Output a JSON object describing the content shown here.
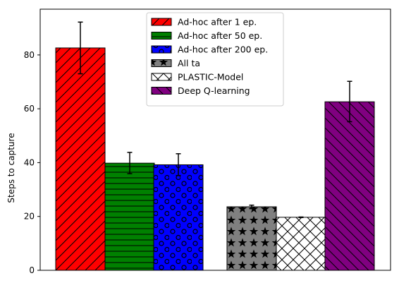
{
  "chart_data": {
    "type": "bar",
    "ylabel": "Steps to capture",
    "xlabel": "",
    "ylim": [
      0,
      97
    ],
    "yticks": [
      0,
      20,
      40,
      60,
      80
    ],
    "legend_placement": "top-center",
    "series": [
      {
        "name": "Ad-hoc after 1 ep.",
        "value": 82.6,
        "err": [
          73.0,
          92.2
        ],
        "color": "#ff0000",
        "hatch": "diag-up"
      },
      {
        "name": "Ad-hoc after 50 ep.",
        "value": 39.8,
        "err": [
          35.9,
          43.8
        ],
        "color": "#008000",
        "hatch": "horizontal"
      },
      {
        "name": "Ad-hoc after 200 ep.",
        "value": 39.2,
        "err": [
          35.2,
          43.3
        ],
        "color": "#0000ff",
        "hatch": "circles"
      },
      {
        "name": "All ta",
        "value": 23.6,
        "err": [
          22.9,
          24.2
        ],
        "color": "#808080",
        "hatch": "stars"
      },
      {
        "name": "PLASTIC-Model",
        "value": 19.7,
        "err": [
          19.6,
          19.8
        ],
        "color": "#ffffff",
        "hatch": "cross"
      },
      {
        "name": "Deep Q-learning",
        "value": 62.6,
        "err": [
          55.2,
          70.2
        ],
        "color": "#800080",
        "hatch": "diag-down"
      }
    ]
  }
}
